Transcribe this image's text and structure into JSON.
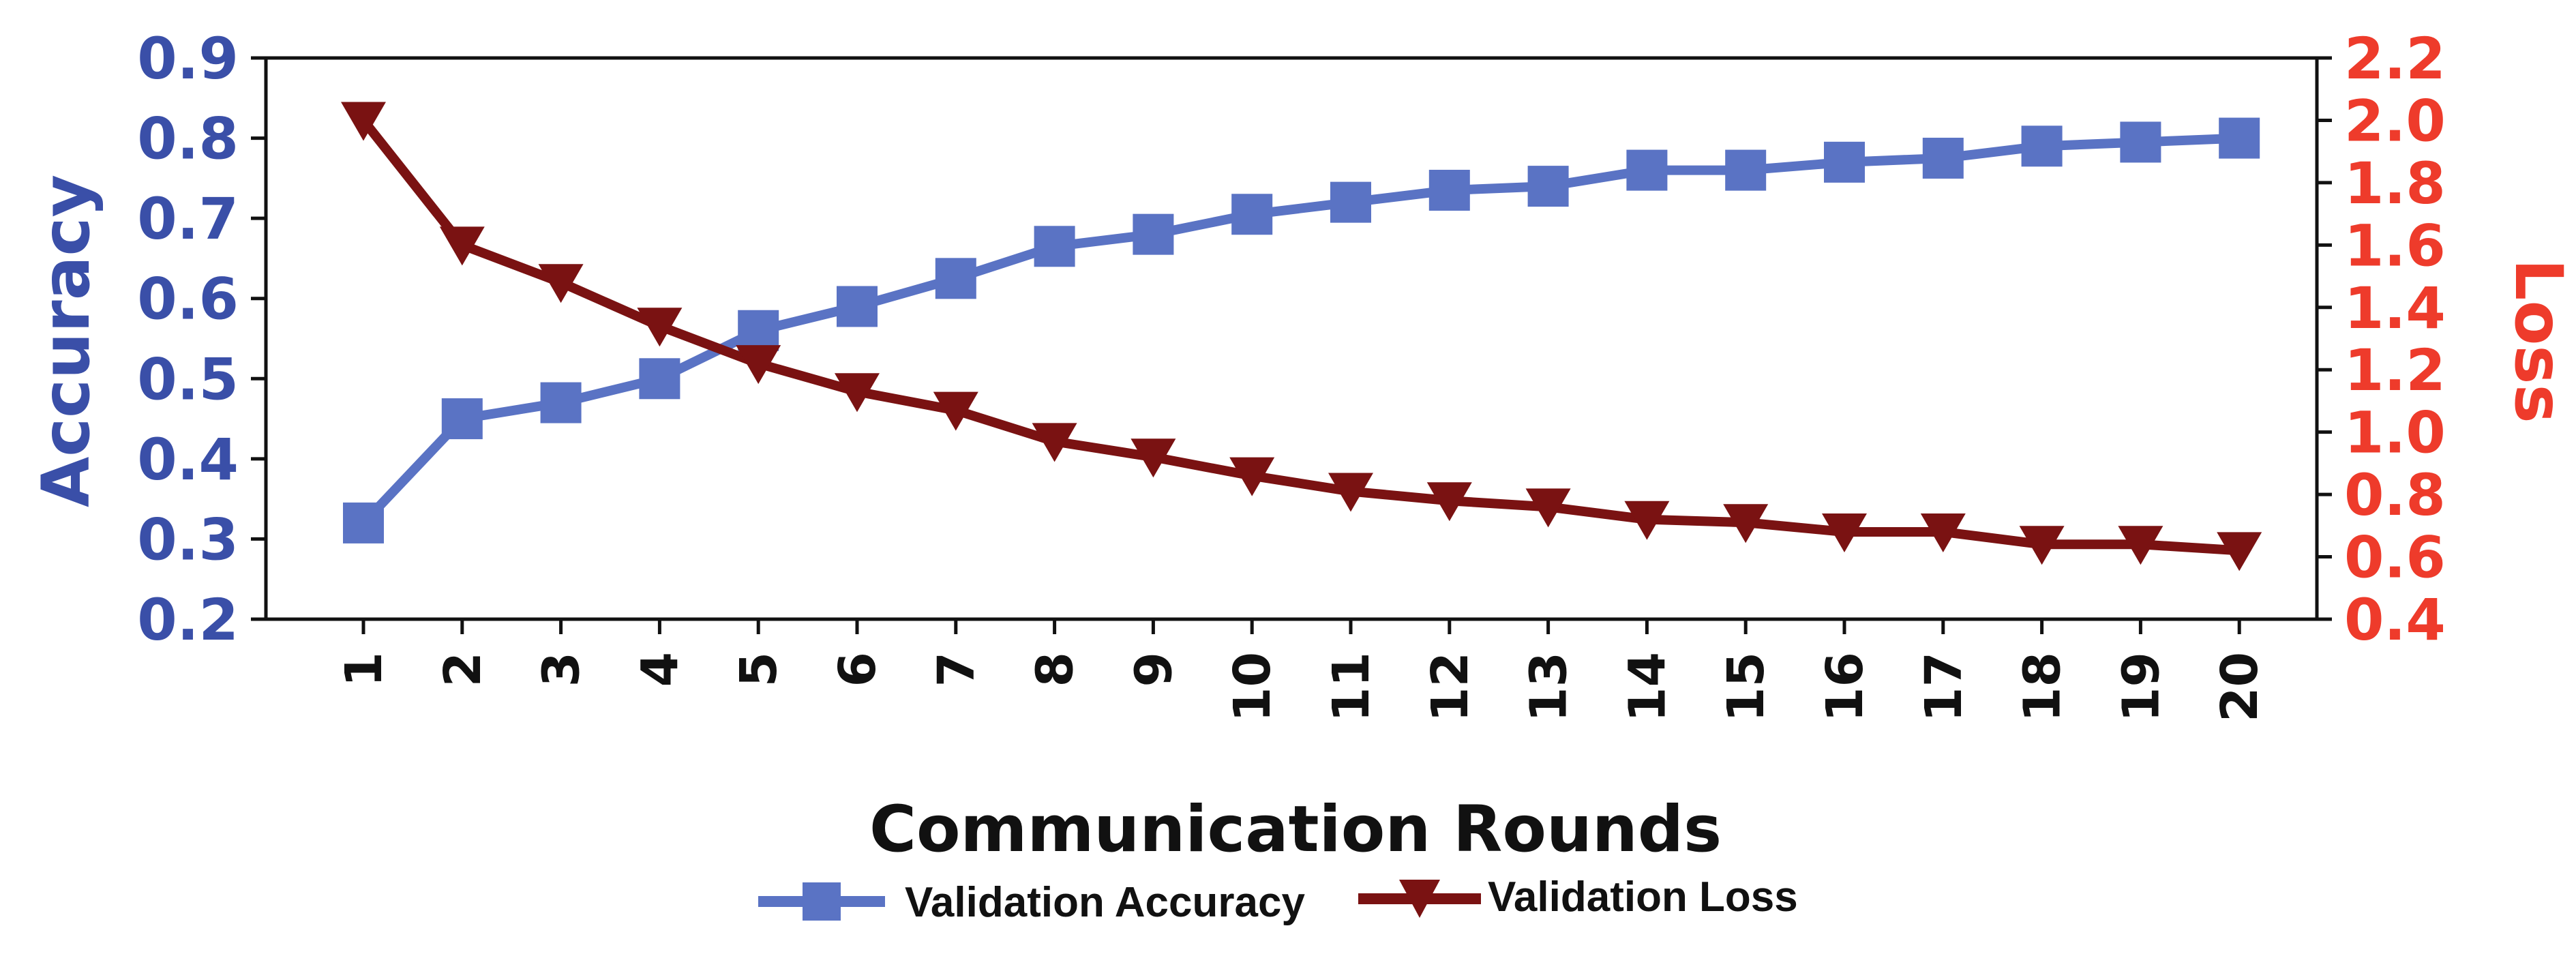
{
  "chart_data": {
    "type": "line",
    "xlabel": "Communication Rounds",
    "ylabel_left": "Accuracy",
    "ylabel_right": "Loss",
    "x": [
      1,
      2,
      3,
      4,
      5,
      6,
      7,
      8,
      9,
      10,
      11,
      12,
      13,
      14,
      15,
      16,
      17,
      18,
      19,
      20
    ],
    "ylim_left": [
      0.2,
      0.9
    ],
    "ylim_right": [
      0.4,
      2.2
    ],
    "yticks_left": [
      "0.2",
      "0.3",
      "0.4",
      "0.5",
      "0.6",
      "0.7",
      "0.8",
      "0.9"
    ],
    "yticks_right": [
      "0.4",
      "0.6",
      "0.8",
      "1.0",
      "1.2",
      "1.4",
      "1.6",
      "1.8",
      "2.0",
      "2.2"
    ],
    "series": [
      {
        "name": "Validation Accuracy",
        "axis": "left",
        "marker": "square",
        "color": "#5a73c4",
        "values": [
          0.32,
          0.45,
          0.47,
          0.5,
          0.56,
          0.59,
          0.625,
          0.665,
          0.68,
          0.705,
          0.72,
          0.735,
          0.74,
          0.76,
          0.76,
          0.77,
          0.775,
          0.79,
          0.795,
          0.8
        ]
      },
      {
        "name": "Validation Loss",
        "axis": "right",
        "marker": "triangle-down",
        "color": "#7a1212",
        "values": [
          2.0,
          1.6,
          1.48,
          1.34,
          1.22,
          1.13,
          1.07,
          0.97,
          0.92,
          0.86,
          0.81,
          0.78,
          0.76,
          0.72,
          0.71,
          0.68,
          0.68,
          0.64,
          0.64,
          0.62
        ]
      }
    ],
    "legend_position": "bottom-center",
    "grid": false,
    "colors": {
      "left_axis": "#3a4fa8",
      "right_axis": "#ee3b2b",
      "accuracy_line": "#5a73c4",
      "loss_line": "#7a1212"
    }
  }
}
